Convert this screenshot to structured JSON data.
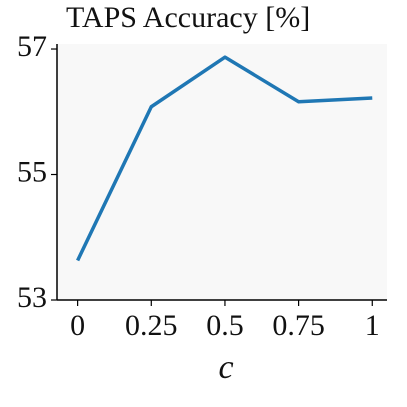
{
  "chart_data": {
    "type": "line",
    "title": "TAPS Accuracy [%]",
    "x_label": "c",
    "x": [
      0,
      0.25,
      0.5,
      0.75,
      1
    ],
    "series": [
      {
        "name": "TAPS",
        "color": "#1f77b4",
        "values": [
          53.63,
          56.08,
          56.87,
          56.16,
          56.22
        ]
      }
    ],
    "xlim": [
      -0.07,
      1.05
    ],
    "xticks": [
      0,
      0.25,
      0.5,
      0.75,
      1
    ],
    "ylim": [
      53,
      57.08
    ],
    "yticks": [
      53,
      55,
      57
    ]
  }
}
